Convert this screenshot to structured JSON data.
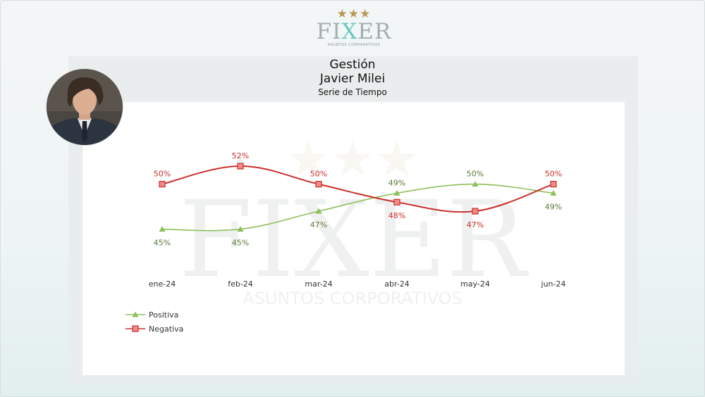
{
  "brand": {
    "name_part1": "FI",
    "name_x": "X",
    "name_part2": "ER",
    "stars": "★★★",
    "tagline": "ASUNTOS CORPORATIVOS"
  },
  "title": {
    "line1": "Gestión",
    "line2": "Javier Milei",
    "subtitle": "Serie de Tiempo"
  },
  "colors": {
    "positiva": "#8dc05a",
    "negativa": "#c9302c",
    "neg_label": "#c9302c",
    "pos_label": "#5b7a3a"
  },
  "chart_data": {
    "type": "line",
    "title": "",
    "categories": [
      "ene-24",
      "feb-24",
      "mar-24",
      "abr-24",
      "may-24",
      "jun-24"
    ],
    "series": [
      {
        "name": "Positiva",
        "values": [
          45,
          45,
          47,
          49,
          50,
          49
        ],
        "labels": [
          "45%",
          "45%",
          "47%",
          "49%",
          "50%",
          "49%"
        ]
      },
      {
        "name": "Negativa",
        "values": [
          50,
          52,
          50,
          48,
          47,
          50
        ],
        "labels": [
          "50%",
          "52%",
          "50%",
          "48%",
          "47%",
          "50%"
        ]
      }
    ],
    "legend": "bottom-left",
    "grid": false
  }
}
